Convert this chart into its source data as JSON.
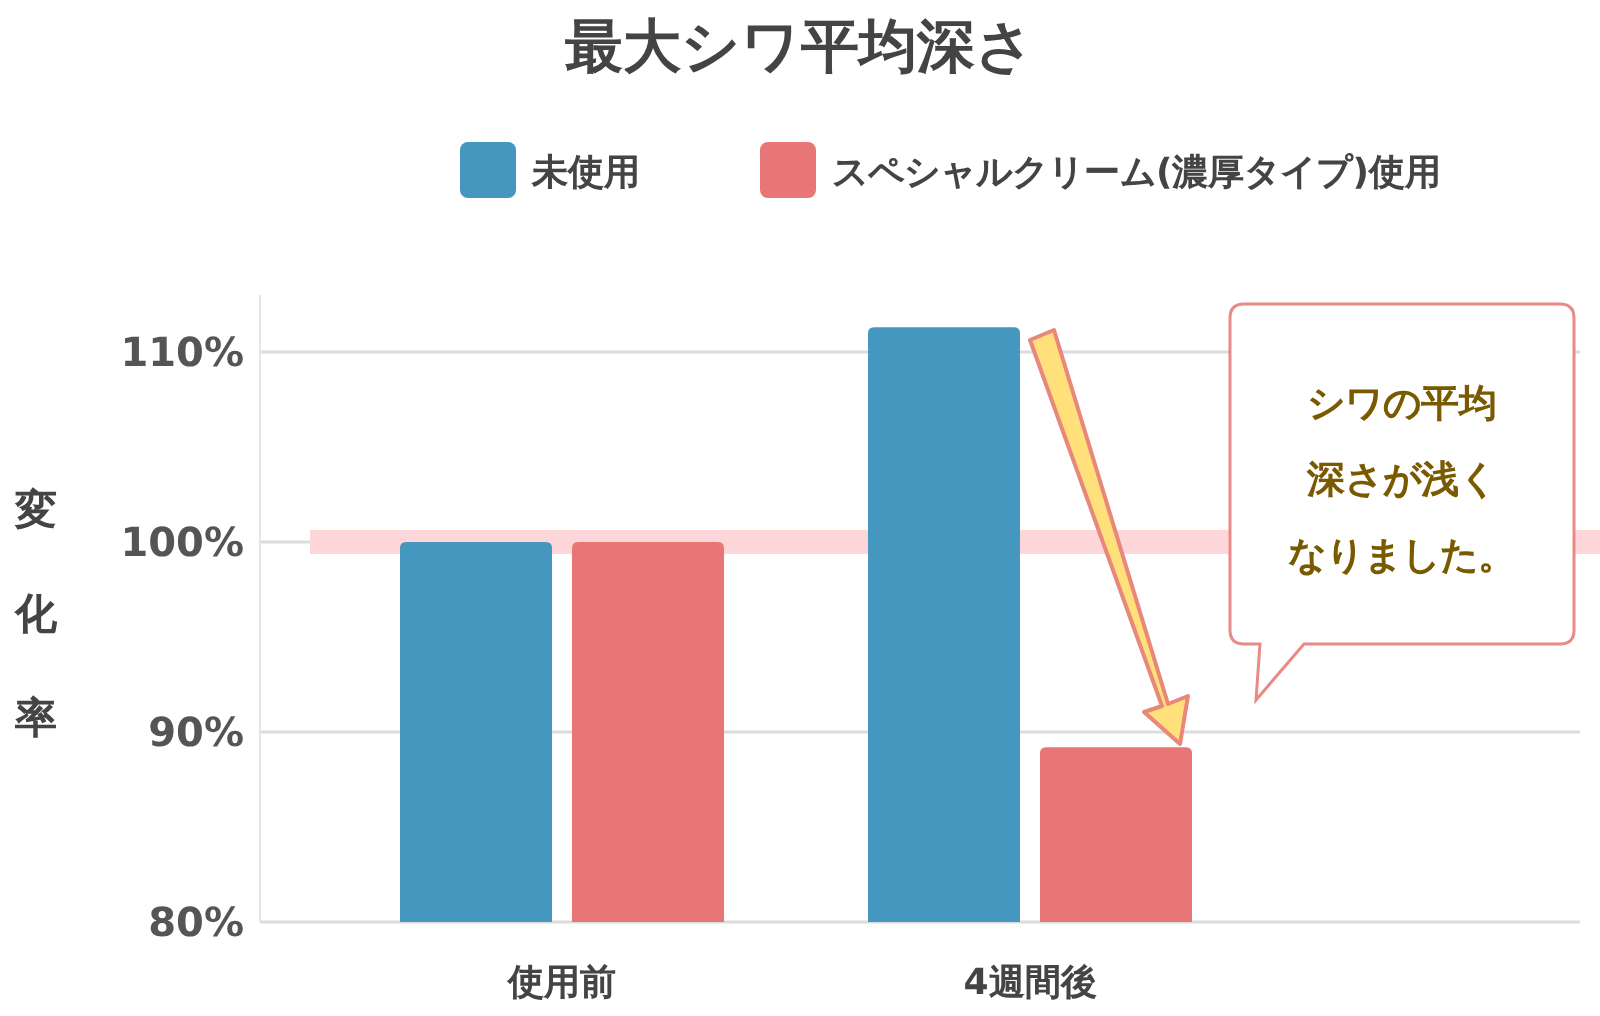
{
  "chart_data": {
    "type": "bar",
    "title": "最大シワ平均深さ",
    "ylabel": "変化率",
    "categories": [
      "使用前",
      "4週間後"
    ],
    "series": [
      {
        "name": "未使用",
        "color": "#4697bf",
        "values": [
          100,
          111.3
        ]
      },
      {
        "name": "スペシャルクリーム(濃厚タイプ)使用",
        "color": "#e87676",
        "values": [
          100,
          89.2
        ]
      }
    ],
    "ylim": [
      80,
      113
    ],
    "yticks": [
      {
        "value": 80,
        "label": "80%"
      },
      {
        "value": 90,
        "label": "90%"
      },
      {
        "value": 100,
        "label": "100%"
      },
      {
        "value": 110,
        "label": "110%"
      }
    ],
    "grid": "y",
    "legend": "top",
    "ref_lines": [
      {
        "axis": "y",
        "value": 100,
        "color": "#fdd6d9"
      }
    ],
    "annotations": [
      "シワの平均深さが浅くなりました。"
    ]
  }
}
